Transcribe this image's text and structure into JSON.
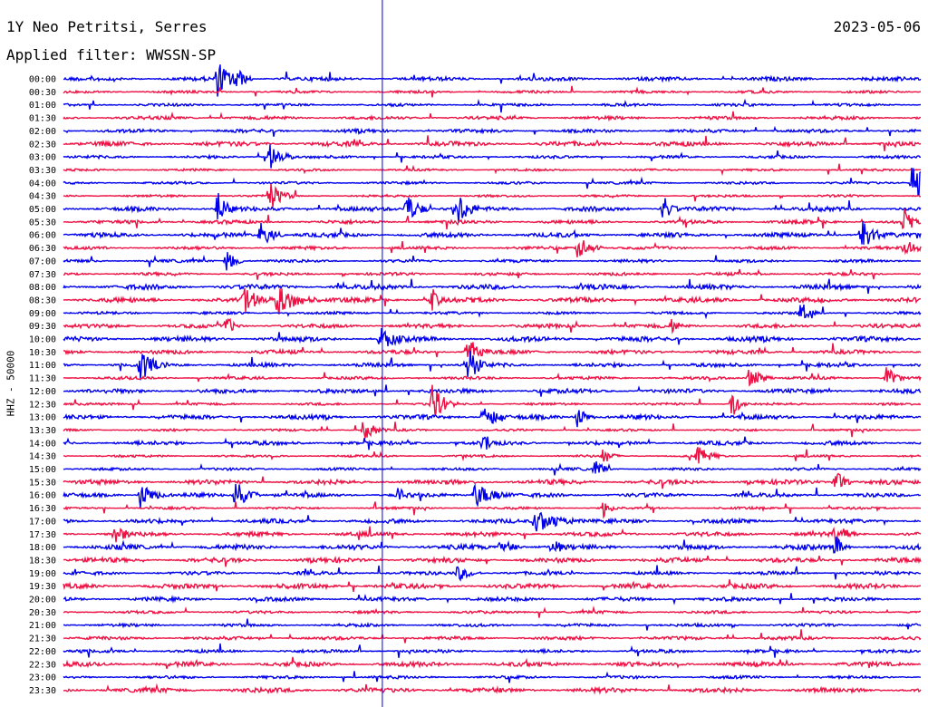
{
  "header": {
    "station": "1Y Neo Petritsi, Serres",
    "date": "2023-05-06",
    "filter": "Applied filter: WWSSN-SP",
    "channel_label": "HHZ - 50000"
  },
  "chart_data": {
    "type": "line",
    "title": "1Y Neo Petritsi, Serres",
    "date": "2023-05-06",
    "ylabel": "HHZ - 50000",
    "colors": [
      "#0000ee",
      "#ee1144"
    ],
    "grid": false,
    "row_labels": [
      "00:00",
      "00:30",
      "01:00",
      "01:30",
      "02:00",
      "02:30",
      "03:00",
      "03:30",
      "04:00",
      "04:30",
      "05:00",
      "05:30",
      "06:00",
      "06:30",
      "07:00",
      "07:30",
      "08:00",
      "08:30",
      "09:00",
      "09:30",
      "10:00",
      "10:30",
      "11:00",
      "11:30",
      "12:00",
      "12:30",
      "13:00",
      "13:30",
      "14:00",
      "14:30",
      "15:00",
      "15:30",
      "16:00",
      "16:30",
      "17:00",
      "17:30",
      "18:00",
      "18:30",
      "19:00",
      "19:30",
      "20:00",
      "20:30",
      "21:00",
      "21:30",
      "22:00",
      "22:30",
      "23:00",
      "23:30"
    ],
    "time_marker_fraction": 0.372,
    "events": [
      {
        "row": 0,
        "x": 0.18,
        "amp": 22,
        "dur": 0.03
      },
      {
        "row": 0,
        "x": 0.2,
        "amp": 18,
        "dur": 0.02
      },
      {
        "row": 6,
        "x": 0.24,
        "amp": 16,
        "dur": 0.03
      },
      {
        "row": 8,
        "x": 0.99,
        "amp": 26,
        "dur": 0.03
      },
      {
        "row": 9,
        "x": 0.24,
        "amp": 18,
        "dur": 0.03
      },
      {
        "row": 10,
        "x": 0.18,
        "amp": 22,
        "dur": 0.02
      },
      {
        "row": 10,
        "x": 0.4,
        "amp": 18,
        "dur": 0.03
      },
      {
        "row": 10,
        "x": 0.46,
        "amp": 20,
        "dur": 0.03
      },
      {
        "row": 10,
        "x": 0.7,
        "amp": 16,
        "dur": 0.02
      },
      {
        "row": 11,
        "x": 0.98,
        "amp": 18,
        "dur": 0.02
      },
      {
        "row": 12,
        "x": 0.23,
        "amp": 14,
        "dur": 0.03
      },
      {
        "row": 12,
        "x": 0.93,
        "amp": 22,
        "dur": 0.03
      },
      {
        "row": 13,
        "x": 0.6,
        "amp": 14,
        "dur": 0.03
      },
      {
        "row": 13,
        "x": 0.98,
        "amp": 12,
        "dur": 0.03
      },
      {
        "row": 14,
        "x": 0.19,
        "amp": 16,
        "dur": 0.02
      },
      {
        "row": 17,
        "x": 0.21,
        "amp": 16,
        "dur": 0.04
      },
      {
        "row": 17,
        "x": 0.25,
        "amp": 18,
        "dur": 0.05
      },
      {
        "row": 17,
        "x": 0.43,
        "amp": 14,
        "dur": 0.02
      },
      {
        "row": 18,
        "x": 0.86,
        "amp": 14,
        "dur": 0.02
      },
      {
        "row": 19,
        "x": 0.19,
        "amp": 12,
        "dur": 0.02
      },
      {
        "row": 19,
        "x": 0.71,
        "amp": 10,
        "dur": 0.02
      },
      {
        "row": 20,
        "x": 0.37,
        "amp": 14,
        "dur": 0.04
      },
      {
        "row": 21,
        "x": 0.47,
        "amp": 20,
        "dur": 0.03
      },
      {
        "row": 22,
        "x": 0.09,
        "amp": 20,
        "dur": 0.03
      },
      {
        "row": 22,
        "x": 0.47,
        "amp": 22,
        "dur": 0.03
      },
      {
        "row": 23,
        "x": 0.8,
        "amp": 12,
        "dur": 0.03
      },
      {
        "row": 23,
        "x": 0.96,
        "amp": 16,
        "dur": 0.02
      },
      {
        "row": 25,
        "x": 0.43,
        "amp": 22,
        "dur": 0.03
      },
      {
        "row": 25,
        "x": 0.78,
        "amp": 16,
        "dur": 0.02
      },
      {
        "row": 26,
        "x": 0.49,
        "amp": 18,
        "dur": 0.03
      },
      {
        "row": 26,
        "x": 0.6,
        "amp": 14,
        "dur": 0.02
      },
      {
        "row": 27,
        "x": 0.35,
        "amp": 12,
        "dur": 0.03
      },
      {
        "row": 28,
        "x": 0.49,
        "amp": 14,
        "dur": 0.02
      },
      {
        "row": 29,
        "x": 0.63,
        "amp": 10,
        "dur": 0.02
      },
      {
        "row": 29,
        "x": 0.74,
        "amp": 12,
        "dur": 0.03
      },
      {
        "row": 30,
        "x": 0.62,
        "amp": 12,
        "dur": 0.02
      },
      {
        "row": 31,
        "x": 0.9,
        "amp": 16,
        "dur": 0.02
      },
      {
        "row": 32,
        "x": 0.09,
        "amp": 16,
        "dur": 0.03
      },
      {
        "row": 32,
        "x": 0.2,
        "amp": 18,
        "dur": 0.03
      },
      {
        "row": 32,
        "x": 0.39,
        "amp": 10,
        "dur": 0.02
      },
      {
        "row": 32,
        "x": 0.48,
        "amp": 14,
        "dur": 0.05
      },
      {
        "row": 33,
        "x": 0.63,
        "amp": 10,
        "dur": 0.02
      },
      {
        "row": 34,
        "x": 0.55,
        "amp": 14,
        "dur": 0.06
      },
      {
        "row": 35,
        "x": 0.06,
        "amp": 12,
        "dur": 0.03
      },
      {
        "row": 35,
        "x": 0.9,
        "amp": 14,
        "dur": 0.03
      },
      {
        "row": 36,
        "x": 0.51,
        "amp": 10,
        "dur": 0.03
      },
      {
        "row": 36,
        "x": 0.57,
        "amp": 10,
        "dur": 0.03
      },
      {
        "row": 36,
        "x": 0.9,
        "amp": 14,
        "dur": 0.02
      },
      {
        "row": 38,
        "x": 0.46,
        "amp": 10,
        "dur": 0.03
      }
    ]
  }
}
